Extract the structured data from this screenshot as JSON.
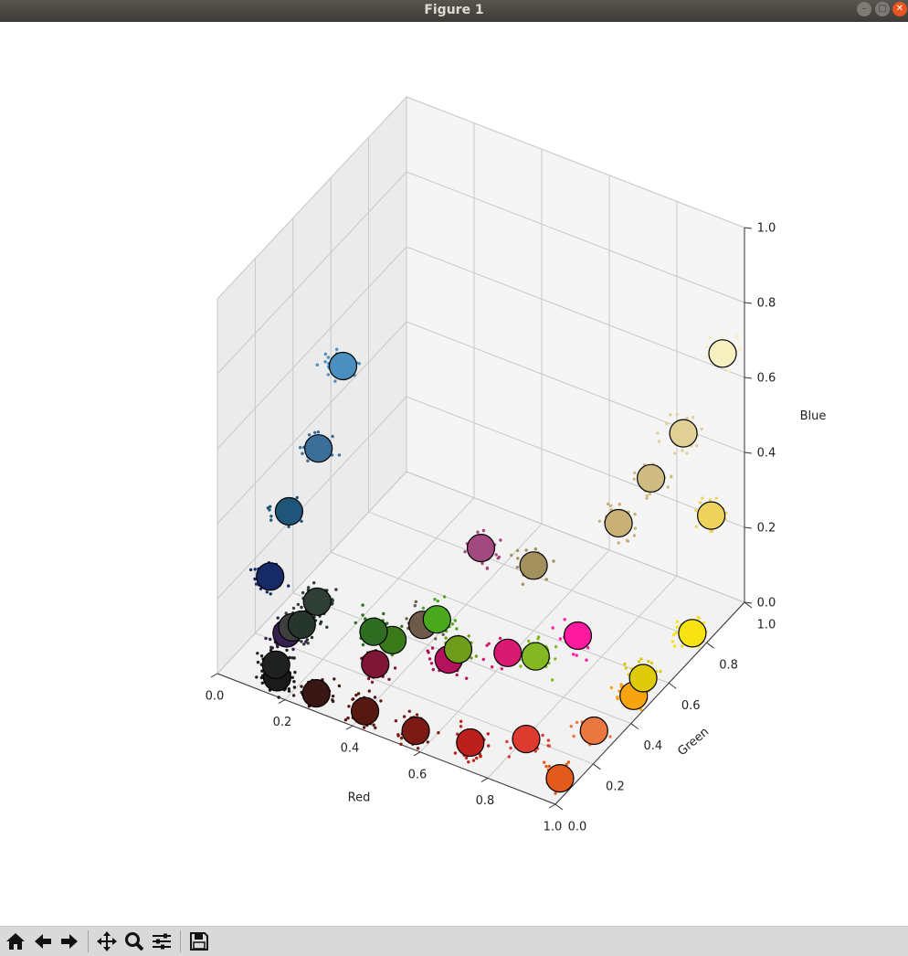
{
  "window": {
    "title": "Figure 1"
  },
  "toolbar": {
    "buttons": [
      {
        "icon": "home-icon"
      },
      {
        "icon": "back-arrow-icon"
      },
      {
        "icon": "forward-arrow-icon"
      },
      {
        "icon": "pan-icon"
      },
      {
        "icon": "zoom-icon"
      },
      {
        "icon": "subplots-icon"
      },
      {
        "icon": "save-icon"
      }
    ]
  },
  "chart_data": {
    "type": "scatter",
    "projection": "3d",
    "xlabel": "Red",
    "ylabel": "Green",
    "zlabel": "Blue",
    "xlim": [
      0,
      1
    ],
    "ylim": [
      0,
      1
    ],
    "zlim": [
      0,
      1
    ],
    "xticks": [
      "0.0",
      "0.2",
      "0.4",
      "0.6",
      "0.8",
      "1.0"
    ],
    "yticks": [
      "0.0",
      "0.2",
      "0.4",
      "0.6",
      "0.8",
      "1.0"
    ],
    "zticks": [
      "0.0",
      "0.2",
      "0.4",
      "0.6",
      "0.8",
      "1.0"
    ],
    "grid": true,
    "series": [
      {
        "kind": "cluster_centers",
        "marker_edge": "#000000",
        "points": [
          {
            "x": 0.12,
            "y": 0.45,
            "z": 0.62,
            "color": "#4a8fbd"
          },
          {
            "x": 0.12,
            "y": 0.32,
            "z": 0.47,
            "color": "#3b6e98"
          },
          {
            "x": 0.1,
            "y": 0.2,
            "z": 0.36,
            "color": "#1f5578"
          },
          {
            "x": 0.1,
            "y": 0.1,
            "z": 0.24,
            "color": "#152a66"
          },
          {
            "x": 0.16,
            "y": 0.08,
            "z": 0.12,
            "color": "#35204f"
          },
          {
            "x": 0.16,
            "y": 0.11,
            "z": 0.12,
            "color": "#3f3f3f"
          },
          {
            "x": 0.2,
            "y": 0.17,
            "z": 0.17,
            "color": "#2f3f35"
          },
          {
            "x": 0.16,
            "y": 0.16,
            "z": 0.1,
            "color": "#26362d"
          },
          {
            "x": 0.14,
            "y": 0.06,
            "z": 0.04,
            "color": "#1f2020"
          },
          {
            "x": 0.16,
            "y": 0.03,
            "z": 0.03,
            "color": "#1a1a1a"
          },
          {
            "x": 0.27,
            "y": 0.04,
            "z": 0.02,
            "color": "#3a1714"
          },
          {
            "x": 0.42,
            "y": 0.03,
            "z": 0.03,
            "color": "#581812"
          },
          {
            "x": 0.57,
            "y": 0.03,
            "z": 0.03,
            "color": "#7c1b15"
          },
          {
            "x": 0.4,
            "y": 0.12,
            "z": 0.1,
            "color": "#7f1636"
          },
          {
            "x": 0.3,
            "y": 0.29,
            "z": 0.06,
            "color": "#2f6d22"
          },
          {
            "x": 0.35,
            "y": 0.3,
            "z": 0.05,
            "color": "#3b7a1a"
          },
          {
            "x": 0.4,
            "y": 0.37,
            "z": 0.07,
            "color": "#6e5a49"
          },
          {
            "x": 0.42,
            "y": 0.41,
            "z": 0.07,
            "color": "#4aa81f"
          },
          {
            "x": 0.55,
            "y": 0.29,
            "z": 0.1,
            "color": "#6f9c1a"
          },
          {
            "x": 0.55,
            "y": 0.24,
            "z": 0.1,
            "color": "#b3125d"
          },
          {
            "x": 0.5,
            "y": 0.5,
            "z": 0.24,
            "color": "#a24a80"
          },
          {
            "x": 0.65,
            "y": 0.51,
            "z": 0.24,
            "color": "#a3915d"
          },
          {
            "x": 0.68,
            "y": 0.32,
            "z": 0.12,
            "color": "#d81a73"
          },
          {
            "x": 0.74,
            "y": 0.36,
            "z": 0.11,
            "color": "#84b823"
          },
          {
            "x": 0.82,
            "y": 0.44,
            "z": 0.15,
            "color": "#ff1aa0"
          },
          {
            "x": 0.72,
            "y": 0.05,
            "z": 0.04,
            "color": "#bb201c"
          },
          {
            "x": 0.88,
            "y": 0.06,
            "z": 0.1,
            "color": "#de3b30"
          },
          {
            "x": 0.98,
            "y": 0.06,
            "z": 0.03,
            "color": "#e25a1c"
          },
          {
            "x": 0.98,
            "y": 0.24,
            "z": 0.06,
            "color": "#ea7640"
          },
          {
            "x": 0.98,
            "y": 0.45,
            "z": 0.04,
            "color": "#f6a511"
          },
          {
            "x": 0.98,
            "y": 0.5,
            "z": 0.06,
            "color": "#ddcb0c"
          },
          {
            "x": 0.98,
            "y": 0.76,
            "z": 0.04,
            "color": "#f7e213"
          },
          {
            "x": 0.84,
            "y": 0.62,
            "z": 0.36,
            "color": "#c9b077"
          },
          {
            "x": 0.88,
            "y": 0.72,
            "z": 0.44,
            "color": "#d0bc82"
          },
          {
            "x": 0.92,
            "y": 0.82,
            "z": 0.52,
            "color": "#e0d095"
          },
          {
            "x": 0.98,
            "y": 0.86,
            "z": 0.3,
            "color": "#eed25c"
          },
          {
            "x": 0.98,
            "y": 0.92,
            "z": 0.7,
            "color": "#f6f0c0"
          }
        ]
      },
      {
        "kind": "pixel_samples",
        "marker_size": "small",
        "count": 1400
      }
    ]
  }
}
